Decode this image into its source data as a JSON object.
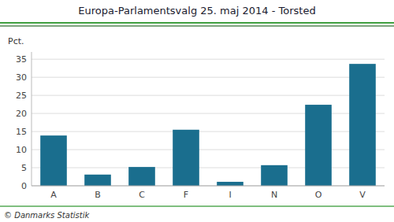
{
  "chart_data": {
    "type": "bar",
    "title": "Europa-Parlamentsvalg 25. maj 2014 - Torsted",
    "categories": [
      "A",
      "B",
      "C",
      "F",
      "I",
      "N",
      "O",
      "V"
    ],
    "values": [
      13.9,
      3.1,
      5.2,
      15.5,
      1.1,
      5.7,
      22.4,
      33.7
    ],
    "color": "#1a6e8e",
    "ylabel": "Pct.",
    "ylim": [
      0,
      37
    ],
    "yticks": [
      0,
      5,
      10,
      15,
      20,
      25,
      30,
      35
    ],
    "grid": true,
    "footer": "© Danmarks Statistik"
  }
}
